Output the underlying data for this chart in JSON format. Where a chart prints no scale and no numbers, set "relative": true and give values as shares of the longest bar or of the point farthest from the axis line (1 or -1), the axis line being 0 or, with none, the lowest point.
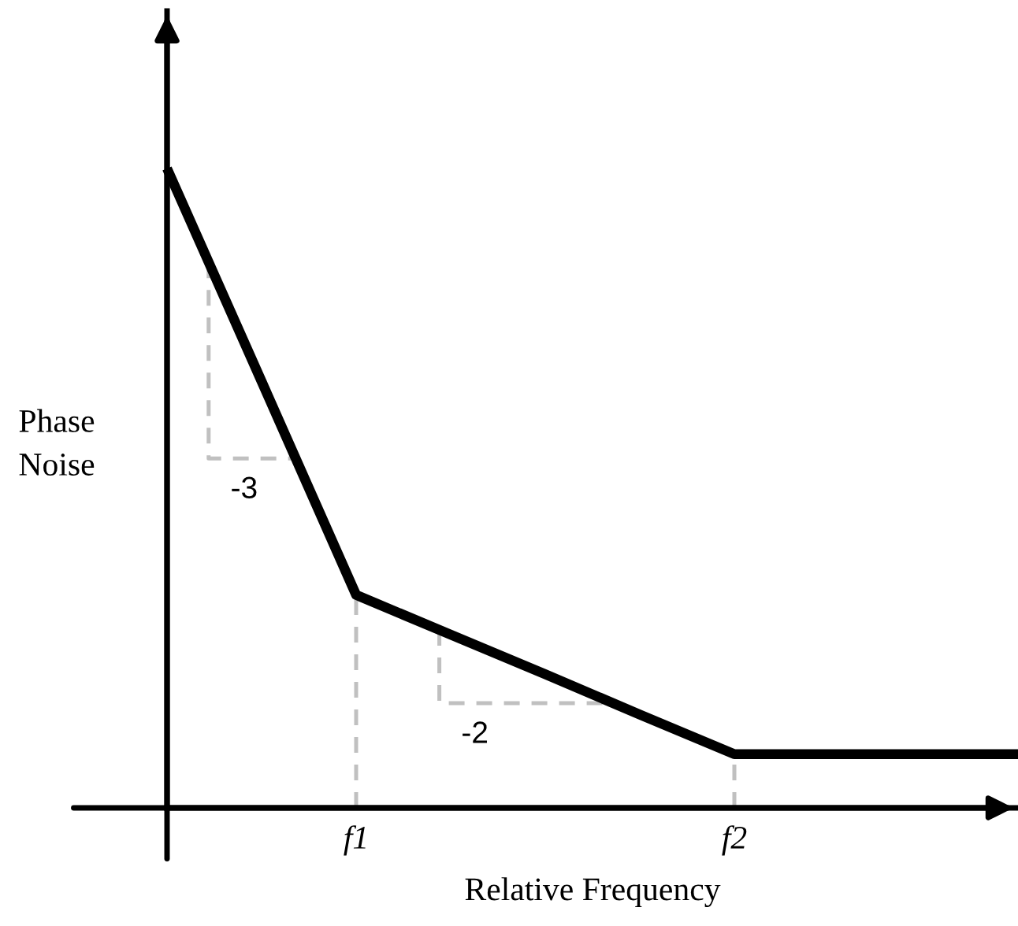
{
  "chart_data": {
    "type": "line",
    "relative": true,
    "xlabel": "Relative Frequency",
    "ylabel": "Phase\nNoise",
    "categories": [
      null,
      null,
      "f1",
      null,
      null,
      null,
      "f2",
      null,
      null,
      null
    ],
    "series": [
      {
        "color": "#000000",
        "values": [
          1,
          0.667,
          0.333,
          0.271,
          0.209,
          0.146,
          0.084,
          0.084,
          0.084,
          0.084
        ]
      }
    ],
    "annotations": [
      "-3",
      "-2"
    ],
    "ref_lines": [
      {
        "axis": "x",
        "value": "f1",
        "color": "#c0c0c0",
        "line_style": "dashed"
      },
      {
        "axis": "x",
        "value": "f2",
        "color": "#c0c0c0",
        "line_style": "dashed"
      }
    ],
    "marker": "none",
    "line_style": "solid",
    "grid": false,
    "legend": false
  }
}
